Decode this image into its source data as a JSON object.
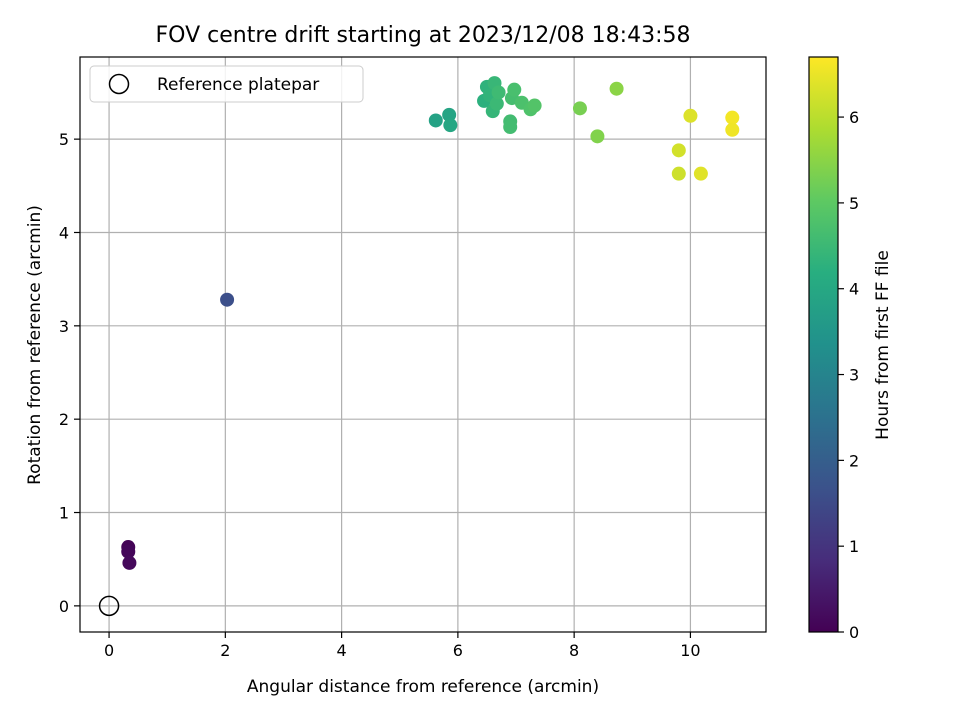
{
  "chart_data": {
    "type": "scatter",
    "title": "FOV centre drift starting at 2023/12/08 18:43:58",
    "xlabel": "Angular distance from reference (arcmin)",
    "ylabel": "Rotation from reference (arcmin)",
    "xlim": [
      -0.5,
      11.3
    ],
    "ylim": [
      -0.28,
      5.88
    ],
    "grid": true,
    "x_ticks": [
      0,
      2,
      4,
      6,
      8,
      10
    ],
    "y_ticks": [
      0,
      1,
      2,
      3,
      4,
      5
    ],
    "legend": {
      "placement": "top-left",
      "entries": [
        {
          "label": "Reference platepar",
          "marker": "hollow-circle",
          "color": "#000000"
        }
      ]
    },
    "reference_point": {
      "x": 0,
      "y": 0
    },
    "colorbar": {
      "label": "Hours from first FF file",
      "colormap": "viridis",
      "range": [
        0,
        6.7
      ],
      "ticks": [
        0,
        1,
        2,
        3,
        4,
        5,
        6
      ]
    },
    "points": [
      {
        "x": 0.33,
        "y": 0.63,
        "hours": 0.05
      },
      {
        "x": 0.33,
        "y": 0.58,
        "hours": 0.1
      },
      {
        "x": 0.35,
        "y": 0.46,
        "hours": 0.15
      },
      {
        "x": 2.03,
        "y": 3.28,
        "hours": 1.6
      },
      {
        "x": 5.62,
        "y": 5.2,
        "hours": 3.85
      },
      {
        "x": 5.85,
        "y": 5.26,
        "hours": 3.9
      },
      {
        "x": 5.87,
        "y": 5.15,
        "hours": 3.95
      },
      {
        "x": 6.45,
        "y": 5.41,
        "hours": 4.25
      },
      {
        "x": 6.5,
        "y": 5.56,
        "hours": 4.3
      },
      {
        "x": 6.55,
        "y": 5.47,
        "hours": 4.35
      },
      {
        "x": 6.6,
        "y": 5.3,
        "hours": 4.4
      },
      {
        "x": 6.63,
        "y": 5.6,
        "hours": 4.45
      },
      {
        "x": 6.67,
        "y": 5.38,
        "hours": 4.5
      },
      {
        "x": 6.7,
        "y": 5.5,
        "hours": 4.55
      },
      {
        "x": 6.9,
        "y": 5.19,
        "hours": 4.6
      },
      {
        "x": 6.9,
        "y": 5.13,
        "hours": 4.62
      },
      {
        "x": 6.93,
        "y": 5.44,
        "hours": 4.65
      },
      {
        "x": 6.97,
        "y": 5.53,
        "hours": 4.7
      },
      {
        "x": 7.1,
        "y": 5.39,
        "hours": 4.75
      },
      {
        "x": 7.25,
        "y": 5.32,
        "hours": 4.8
      },
      {
        "x": 7.32,
        "y": 5.36,
        "hours": 4.85
      },
      {
        "x": 8.1,
        "y": 5.33,
        "hours": 5.3
      },
      {
        "x": 8.4,
        "y": 5.03,
        "hours": 5.4
      },
      {
        "x": 8.73,
        "y": 5.54,
        "hours": 5.5
      },
      {
        "x": 9.8,
        "y": 4.63,
        "hours": 6.2
      },
      {
        "x": 9.8,
        "y": 4.88,
        "hours": 6.25
      },
      {
        "x": 10.0,
        "y": 5.25,
        "hours": 6.35
      },
      {
        "x": 10.18,
        "y": 4.63,
        "hours": 6.4
      },
      {
        "x": 10.72,
        "y": 5.23,
        "hours": 6.6
      },
      {
        "x": 10.72,
        "y": 5.1,
        "hours": 6.55
      }
    ]
  }
}
